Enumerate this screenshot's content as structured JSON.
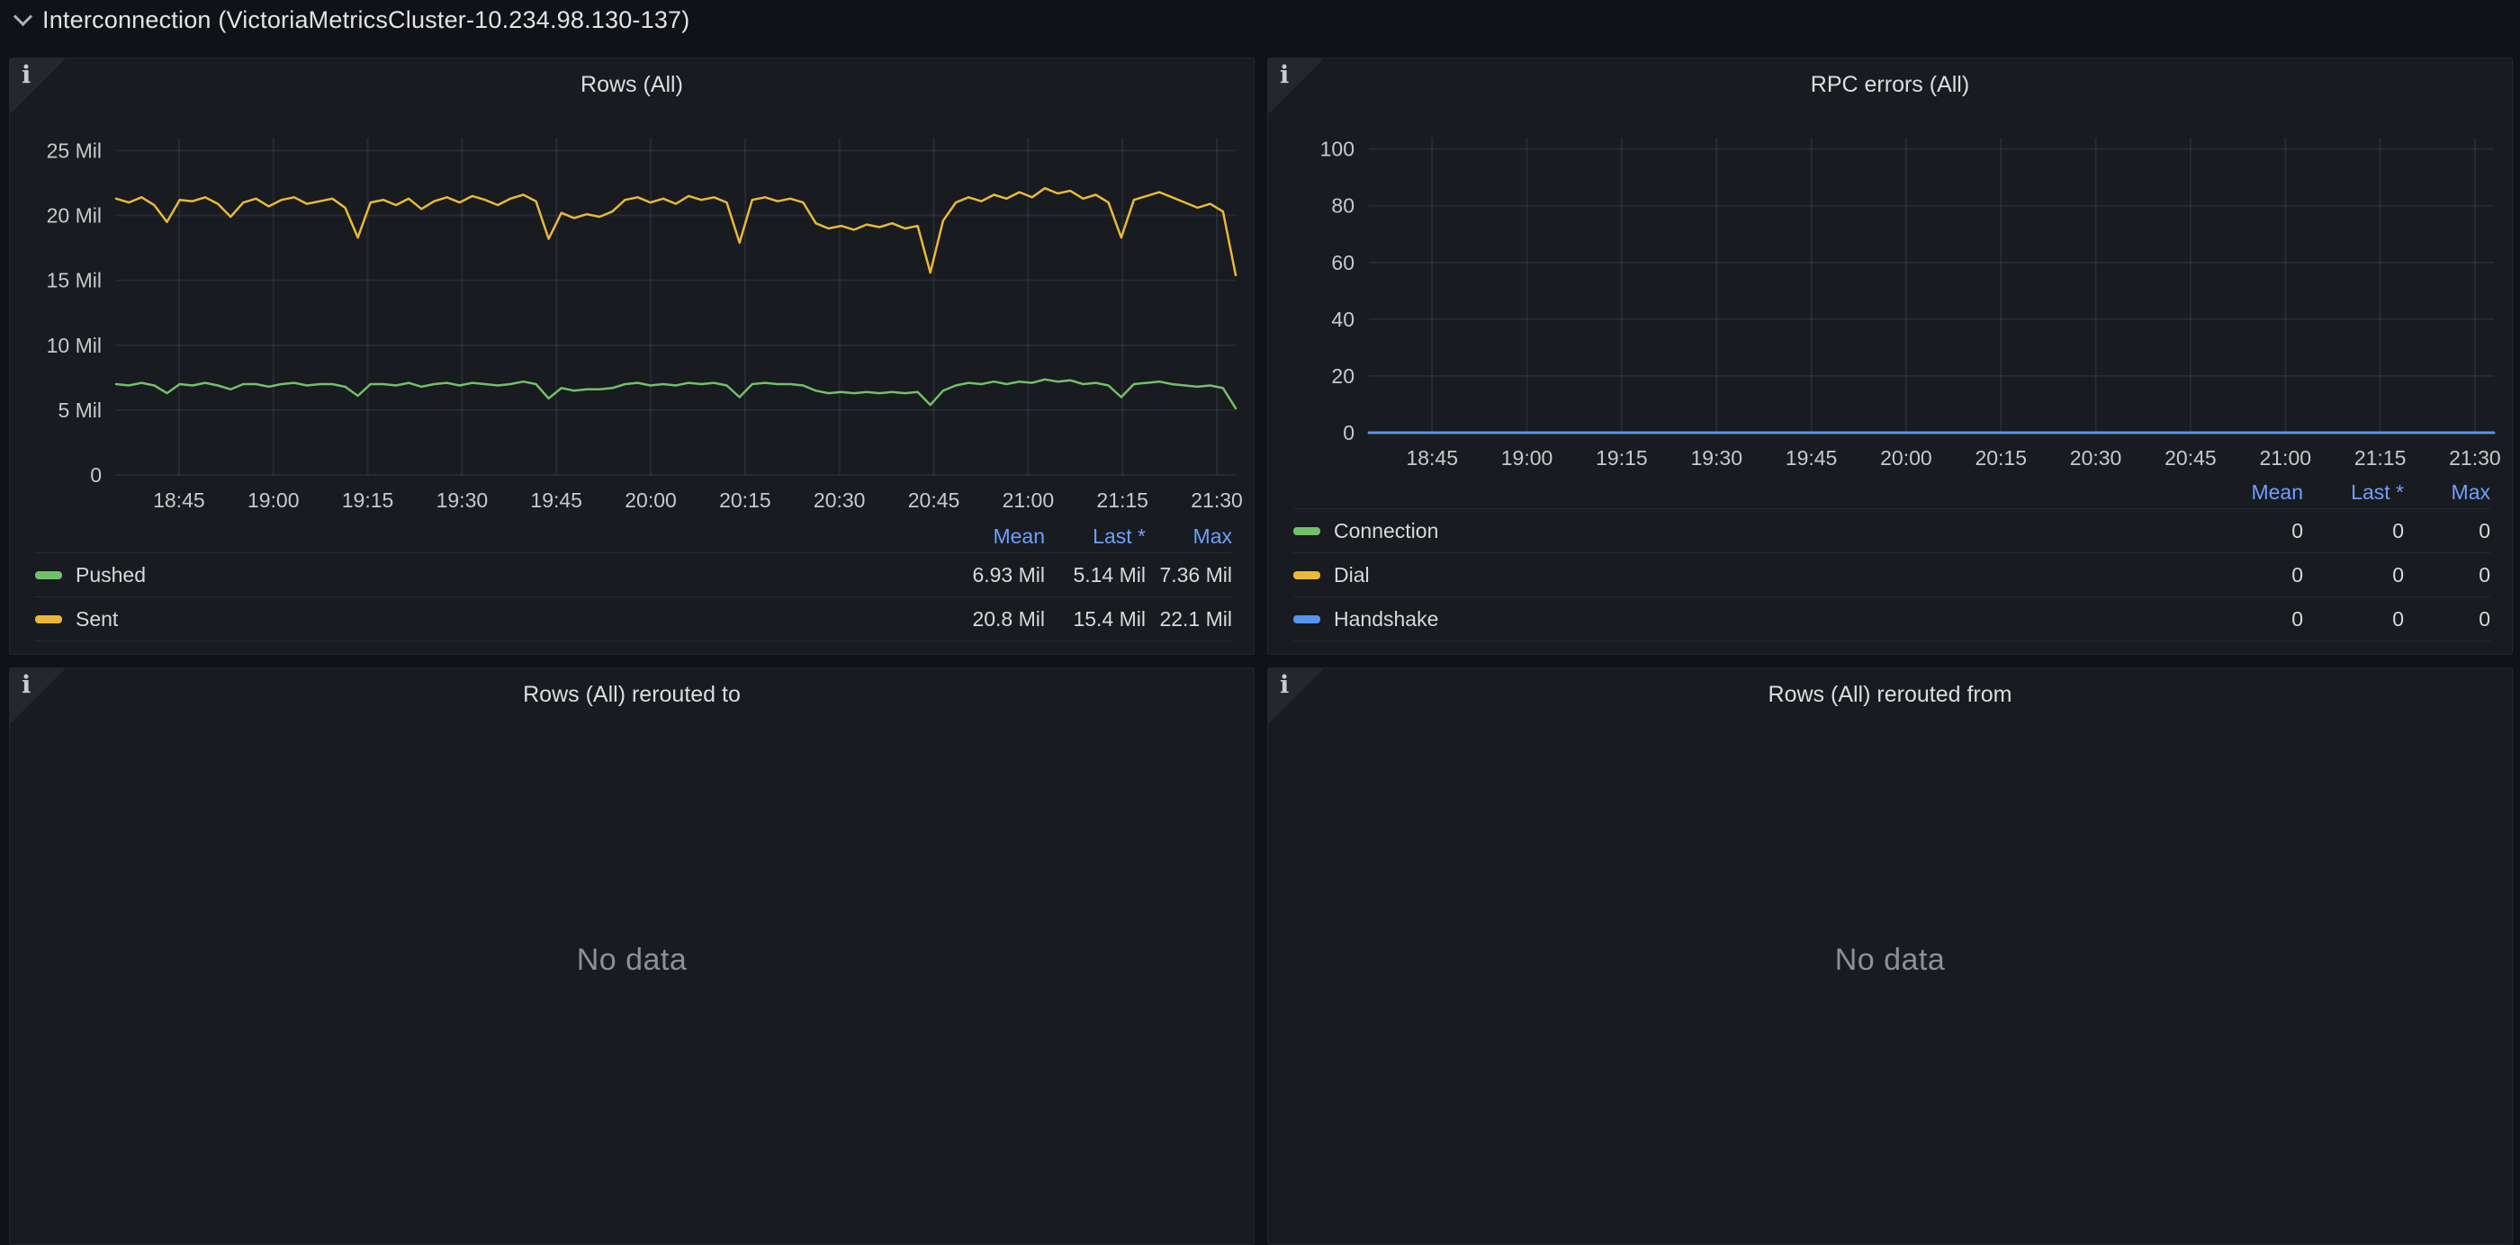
{
  "row_header": {
    "title": "Interconnection (VictoriaMetricsCluster-10.234.98.130-137)",
    "collapse_icon": "chevron-down"
  },
  "panels": [
    {
      "title": "Rows (All)",
      "info_icon": "i"
    },
    {
      "title": "RPC errors (All)",
      "info_icon": "i"
    },
    {
      "title": "Rows (All) rerouted to",
      "info_icon": "i",
      "no_data": "No data"
    },
    {
      "title": "Rows (All) rerouted from",
      "info_icon": "i",
      "no_data": "No data"
    }
  ],
  "colors": {
    "page_bg": "#111217",
    "panel_bg": "#181b1f",
    "grid": "rgba(204,204,220,0.09)",
    "axis_text": "#c7c9cc",
    "legend_link_blue": "#6e9fff",
    "series_green": "#73BF69",
    "series_yellow": "#EAB839",
    "series_blue": "#5794F2",
    "no_data_text": "#8e9097"
  },
  "chart_data": [
    {
      "type": "line",
      "title": "Rows (All)",
      "unit": "Mil",
      "ylim": [
        0,
        26
      ],
      "grid": true,
      "legend_position": "bottom-table",
      "y_ticks": [
        {
          "value": 0,
          "label": "0"
        },
        {
          "value": 5,
          "label": "5 Mil"
        },
        {
          "value": 10,
          "label": "10 Mil"
        },
        {
          "value": 15,
          "label": "15 Mil"
        },
        {
          "value": 20,
          "label": "20 Mil"
        },
        {
          "value": 25,
          "label": "25 Mil"
        }
      ],
      "x_range": {
        "start": "18:35",
        "end": "21:33",
        "total_minutes": 178
      },
      "x_ticks": [
        {
          "minute": 10,
          "label": "18:45"
        },
        {
          "minute": 25,
          "label": "19:00"
        },
        {
          "minute": 40,
          "label": "19:15"
        },
        {
          "minute": 55,
          "label": "19:30"
        },
        {
          "minute": 70,
          "label": "19:45"
        },
        {
          "minute": 85,
          "label": "20:00"
        },
        {
          "minute": 100,
          "label": "20:15"
        },
        {
          "minute": 115,
          "label": "20:30"
        },
        {
          "minute": 130,
          "label": "20:45"
        },
        {
          "minute": 145,
          "label": "21:00"
        },
        {
          "minute": 160,
          "label": "21:15"
        },
        {
          "minute": 175,
          "label": "21:30"
        }
      ],
      "series": [
        {
          "name": "Pushed",
          "color": "#73BF69",
          "values": [
            7.0,
            6.9,
            7.1,
            6.9,
            6.3,
            7.0,
            6.9,
            7.1,
            6.9,
            6.6,
            7.0,
            7.0,
            6.8,
            7.0,
            7.1,
            6.9,
            7.0,
            7.0,
            6.8,
            6.1,
            7.0,
            7.0,
            6.9,
            7.1,
            6.8,
            7.0,
            7.1,
            6.9,
            7.1,
            7.0,
            6.9,
            7.0,
            7.2,
            7.0,
            5.9,
            6.7,
            6.5,
            6.6,
            6.6,
            6.7,
            7.0,
            7.1,
            6.9,
            7.0,
            6.9,
            7.1,
            7.0,
            7.1,
            6.9,
            6.0,
            7.0,
            7.1,
            7.0,
            7.0,
            6.9,
            6.5,
            6.3,
            6.4,
            6.3,
            6.4,
            6.3,
            6.4,
            6.3,
            6.4,
            5.4,
            6.5,
            6.9,
            7.1,
            7.0,
            7.2,
            7.0,
            7.2,
            7.1,
            7.36,
            7.2,
            7.3,
            7.0,
            7.1,
            6.9,
            6.0,
            7.0,
            7.1,
            7.2,
            7.0,
            6.9,
            6.8,
            6.9,
            6.7,
            5.14
          ]
        },
        {
          "name": "Sent",
          "color": "#EAB839",
          "values": [
            21.3,
            21.0,
            21.4,
            20.8,
            19.5,
            21.2,
            21.1,
            21.4,
            20.9,
            19.9,
            21.0,
            21.3,
            20.7,
            21.2,
            21.4,
            20.9,
            21.1,
            21.3,
            20.6,
            18.3,
            21.0,
            21.2,
            20.8,
            21.3,
            20.5,
            21.1,
            21.4,
            21.0,
            21.5,
            21.2,
            20.8,
            21.3,
            21.6,
            21.1,
            18.2,
            20.2,
            19.8,
            20.1,
            19.9,
            20.3,
            21.2,
            21.4,
            21.0,
            21.3,
            20.9,
            21.5,
            21.2,
            21.4,
            21.0,
            17.9,
            21.2,
            21.4,
            21.1,
            21.3,
            21.0,
            19.4,
            19.0,
            19.2,
            18.9,
            19.3,
            19.1,
            19.4,
            19.0,
            19.2,
            15.6,
            19.6,
            21.0,
            21.4,
            21.1,
            21.6,
            21.3,
            21.8,
            21.4,
            22.1,
            21.7,
            21.9,
            21.3,
            21.6,
            21.0,
            18.3,
            21.2,
            21.5,
            21.8,
            21.4,
            21.0,
            20.6,
            20.9,
            20.3,
            15.4
          ]
        }
      ],
      "legend": {
        "columns": [
          "Mean",
          "Last *",
          "Max"
        ],
        "rows": [
          {
            "name": "Pushed",
            "color": "#73BF69",
            "values": [
              "6.93 Mil",
              "5.14 Mil",
              "7.36 Mil"
            ]
          },
          {
            "name": "Sent",
            "color": "#EAB839",
            "values": [
              "20.8 Mil",
              "15.4 Mil",
              "22.1 Mil"
            ]
          }
        ]
      }
    },
    {
      "type": "line",
      "title": "RPC errors (All)",
      "unit": "",
      "ylim": [
        0,
        104
      ],
      "grid": true,
      "legend_position": "bottom-table",
      "y_ticks": [
        {
          "value": 0,
          "label": "0"
        },
        {
          "value": 20,
          "label": "20"
        },
        {
          "value": 40,
          "label": "40"
        },
        {
          "value": 60,
          "label": "60"
        },
        {
          "value": 80,
          "label": "80"
        },
        {
          "value": 100,
          "label": "100"
        }
      ],
      "x_range": {
        "start": "18:35",
        "end": "21:33",
        "total_minutes": 178
      },
      "x_ticks": [
        {
          "minute": 10,
          "label": "18:45"
        },
        {
          "minute": 25,
          "label": "19:00"
        },
        {
          "minute": 40,
          "label": "19:15"
        },
        {
          "minute": 55,
          "label": "19:30"
        },
        {
          "minute": 70,
          "label": "19:45"
        },
        {
          "minute": 85,
          "label": "20:00"
        },
        {
          "minute": 100,
          "label": "20:15"
        },
        {
          "minute": 115,
          "label": "20:30"
        },
        {
          "minute": 130,
          "label": "20:45"
        },
        {
          "minute": 145,
          "label": "21:00"
        },
        {
          "minute": 160,
          "label": "21:15"
        },
        {
          "minute": 175,
          "label": "21:30"
        }
      ],
      "series": [
        {
          "name": "Connection",
          "color": "#73BF69",
          "values": [
            0,
            0
          ]
        },
        {
          "name": "Dial",
          "color": "#EAB839",
          "values": [
            0,
            0
          ]
        },
        {
          "name": "Handshake",
          "color": "#5794F2",
          "values": [
            0,
            0
          ]
        }
      ],
      "legend": {
        "columns": [
          "Mean",
          "Last *",
          "Max"
        ],
        "rows": [
          {
            "name": "Connection",
            "color": "#73BF69",
            "values": [
              "0",
              "0",
              "0"
            ]
          },
          {
            "name": "Dial",
            "color": "#EAB839",
            "values": [
              "0",
              "0",
              "0"
            ]
          },
          {
            "name": "Handshake",
            "color": "#5794F2",
            "values": [
              "0",
              "0",
              "0"
            ]
          }
        ]
      }
    }
  ]
}
